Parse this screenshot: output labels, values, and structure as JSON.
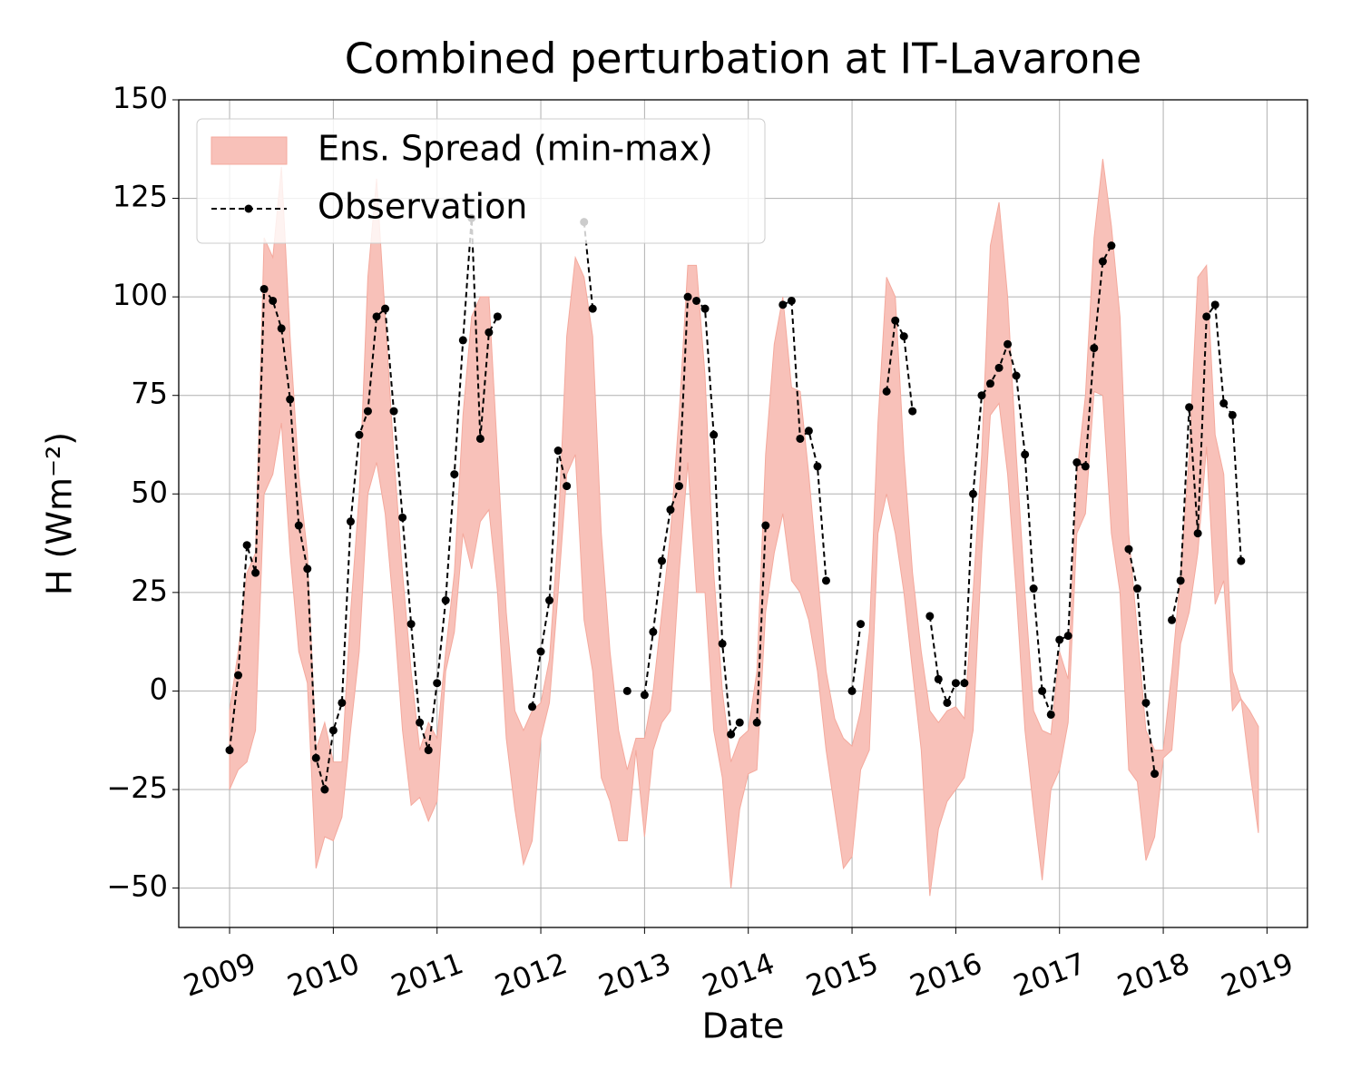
{
  "chart_data": {
    "type": "band-line",
    "title": "Combined perturbation at IT-Lavarone",
    "xlabel": "Date",
    "ylabel": "H  (Wm⁻²)",
    "x": [
      2009,
      2009.083,
      2009.167,
      2009.25,
      2009.333,
      2009.417,
      2009.5,
      2009.583,
      2009.667,
      2009.75,
      2009.833,
      2009.917,
      2010,
      2010.083,
      2010.167,
      2010.25,
      2010.333,
      2010.417,
      2010.5,
      2010.583,
      2010.667,
      2010.75,
      2010.833,
      2010.917,
      2011,
      2011.083,
      2011.167,
      2011.25,
      2011.333,
      2011.417,
      2011.5,
      2011.583,
      2011.667,
      2011.75,
      2011.833,
      2011.917,
      2012,
      2012.083,
      2012.167,
      2012.25,
      2012.333,
      2012.417,
      2012.5,
      2012.583,
      2012.667,
      2012.75,
      2012.833,
      2012.917,
      2013,
      2013.083,
      2013.167,
      2013.25,
      2013.333,
      2013.417,
      2013.5,
      2013.583,
      2013.667,
      2013.75,
      2013.833,
      2013.917,
      2014,
      2014.083,
      2014.167,
      2014.25,
      2014.333,
      2014.417,
      2014.5,
      2014.583,
      2014.667,
      2014.75,
      2014.833,
      2014.917,
      2015,
      2015.083,
      2015.167,
      2015.25,
      2015.333,
      2015.417,
      2015.5,
      2015.583,
      2015.667,
      2015.75,
      2015.833,
      2015.917,
      2016,
      2016.083,
      2016.167,
      2016.25,
      2016.333,
      2016.417,
      2016.5,
      2016.583,
      2016.667,
      2016.75,
      2016.833,
      2016.917,
      2017,
      2017.083,
      2017.167,
      2017.25,
      2017.333,
      2017.417,
      2017.5,
      2017.583,
      2017.667,
      2017.75,
      2017.833,
      2017.917,
      2018,
      2018.083,
      2018.167,
      2018.25,
      2018.333,
      2018.417,
      2018.5,
      2018.583,
      2018.667,
      2018.75,
      2018.833,
      2018.917
    ],
    "series": [
      {
        "name": "Ens. Spread (min-max)",
        "color": "#f8c1b9",
        "edge": "#f4a99d",
        "min": [
          -25,
          -20,
          -18,
          -10,
          50,
          55,
          68,
          35,
          10,
          2,
          -45,
          -37,
          -38,
          -32,
          -10,
          10,
          50,
          58,
          45,
          20,
          -10,
          -29,
          -27,
          -33,
          -28,
          5,
          15,
          40,
          31,
          43,
          46,
          25,
          -12,
          -30,
          -44,
          -38,
          -12,
          -3,
          25,
          55,
          60,
          18,
          5,
          -22,
          -28,
          -38,
          -38,
          -15,
          -37,
          -15,
          -8,
          -5,
          30,
          58,
          25,
          25,
          -10,
          -22,
          -50,
          -30,
          -21,
          -20,
          20,
          35,
          45,
          28,
          25,
          18,
          5,
          -15,
          -30,
          -45,
          -42,
          -20,
          -15,
          40,
          50,
          40,
          25,
          5,
          -15,
          -52,
          -35,
          -28,
          -25,
          -22,
          -10,
          35,
          70,
          73,
          55,
          25,
          -10,
          -30,
          -48,
          -25,
          -20,
          -8,
          40,
          45,
          76,
          75,
          40,
          25,
          -20,
          -23,
          -43,
          -37,
          -17,
          -15,
          12,
          20,
          35,
          62,
          22,
          28,
          -5,
          -2,
          -20,
          -36
        ],
        "max": [
          -5,
          10,
          30,
          35,
          115,
          110,
          133,
          90,
          55,
          35,
          -15,
          -8,
          -18,
          -18,
          20,
          50,
          105,
          130,
          95,
          60,
          30,
          5,
          -15,
          -8,
          -12,
          10,
          30,
          70,
          95,
          100,
          100,
          60,
          20,
          -5,
          -10,
          -5,
          -3,
          8,
          40,
          90,
          110,
          105,
          90,
          40,
          10,
          -10,
          -20,
          -12,
          -12,
          0,
          20,
          40,
          70,
          108,
          108,
          80,
          30,
          0,
          -18,
          -12,
          -10,
          5,
          60,
          88,
          100,
          77,
          76,
          55,
          30,
          5,
          -7,
          -12,
          -14,
          -5,
          15,
          68,
          105,
          100,
          60,
          30,
          10,
          -5,
          -8,
          -5,
          -4,
          -7,
          25,
          60,
          113,
          124,
          100,
          60,
          25,
          -5,
          -10,
          -11,
          10,
          3,
          55,
          75,
          115,
          135,
          118,
          95,
          40,
          15,
          -10,
          -15,
          -15,
          5,
          30,
          60,
          105,
          108,
          65,
          55,
          5,
          -2,
          -5,
          -9
        ]
      },
      {
        "name": "Observation",
        "color": "#000000",
        "values": [
          -15,
          4,
          37,
          30,
          102,
          99,
          92,
          74,
          42,
          31,
          -17,
          -25,
          -10,
          -3,
          43,
          65,
          71,
          95,
          97,
          71,
          44,
          17,
          -8,
          -15,
          2,
          23,
          55,
          89,
          120,
          64,
          91,
          95,
          null,
          null,
          null,
          -4,
          10,
          23,
          61,
          52,
          null,
          119,
          97,
          null,
          null,
          null,
          0,
          null,
          -1,
          15,
          33,
          46,
          52,
          100,
          99,
          97,
          65,
          12,
          -11,
          -8,
          null,
          -8,
          42,
          null,
          98,
          99,
          64,
          66,
          57,
          28,
          null,
          null,
          0,
          17,
          null,
          null,
          76,
          94,
          90,
          71,
          null,
          19,
          3,
          -3,
          2,
          2,
          50,
          75,
          78,
          82,
          88,
          80,
          60,
          26,
          0,
          -6,
          13,
          14,
          58,
          57,
          87,
          109,
          113,
          null,
          36,
          26,
          -3,
          -21,
          null,
          18,
          28,
          72,
          40,
          95,
          98,
          73,
          70,
          33,
          null,
          null
        ]
      }
    ],
    "xlim": [
      2008.51,
      2019.39
    ],
    "xticks": [
      2009,
      2010,
      2011,
      2012,
      2013,
      2014,
      2015,
      2016,
      2017,
      2018,
      2019
    ],
    "ylim": [
      -60,
      150
    ],
    "yticks": [
      {
        "value": -50,
        "label": "−50"
      },
      {
        "value": -25,
        "label": "−25"
      },
      0,
      25,
      50,
      75,
      100,
      125,
      150
    ],
    "grid": true,
    "legend": "upper left"
  }
}
